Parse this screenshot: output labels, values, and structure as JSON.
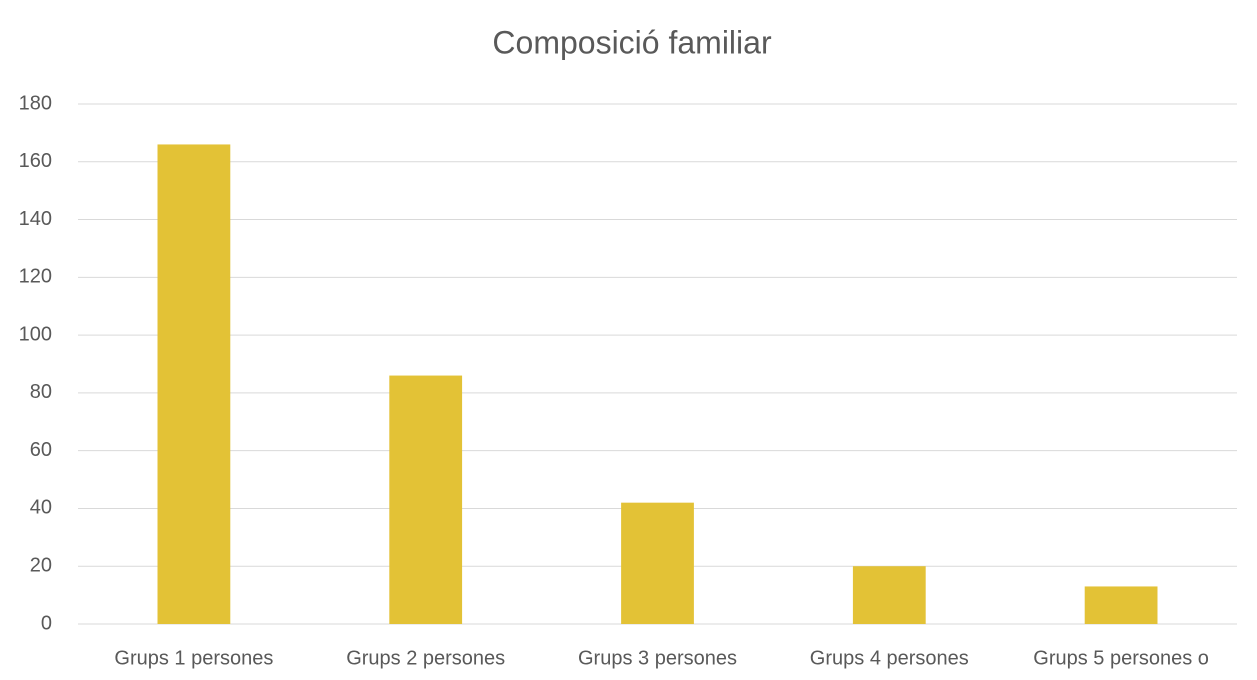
{
  "chart_data": {
    "type": "bar",
    "title": "Composició familiar",
    "categories": [
      "Grups 1 persones",
      "Grups 2 persones",
      "Grups 3 persones",
      "Grups 4 persones",
      "Grups 5 persones o"
    ],
    "values": [
      166,
      86,
      42,
      20,
      13
    ],
    "color": "#e3c236",
    "ylim": [
      0,
      180
    ],
    "yticks": [
      0,
      20,
      40,
      60,
      80,
      100,
      120,
      140,
      160,
      180
    ],
    "grid": true
  }
}
